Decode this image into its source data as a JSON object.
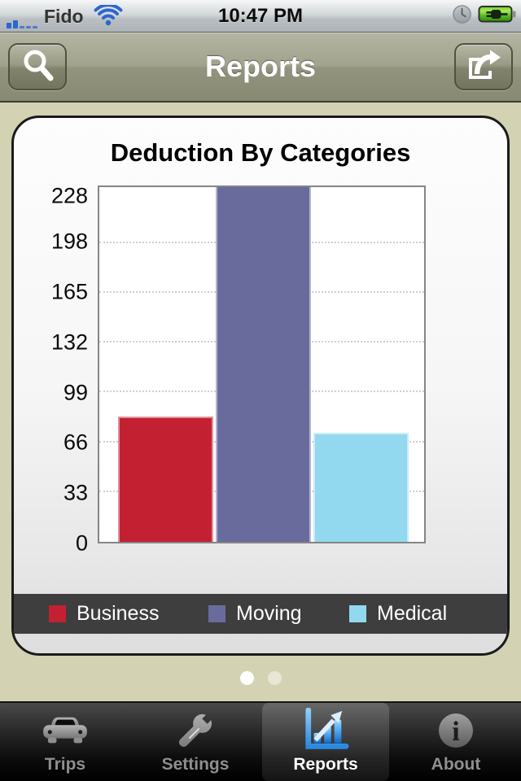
{
  "status_bar": {
    "carrier": "Fido",
    "time": "10:47 PM",
    "signal_bars_filled": 2,
    "signal_bars_total": 5,
    "icons": [
      "cell-signal-icon",
      "wifi-icon",
      "clock-icon",
      "battery-charging-icon"
    ]
  },
  "nav_bar": {
    "title": "Reports",
    "left_button_icon": "search-icon",
    "right_button_icon": "share-icon"
  },
  "chart_data": {
    "type": "bar",
    "title": "Deduction By Categories",
    "categories": [
      "Business",
      "Moving",
      "Medical"
    ],
    "values": [
      83,
      240,
      72
    ],
    "colors": [
      "#c32132",
      "#6a6b9d",
      "#92d8ee"
    ],
    "y_ticks": [
      0,
      33,
      66,
      99,
      132,
      165,
      198,
      228
    ],
    "ylim": [
      0,
      235
    ],
    "xlabel": "",
    "ylabel": "",
    "grid": "horizontal dotted",
    "legend_position": "bottom bar",
    "note": "Moving bar exceeds the y-axis range and is clipped at the plot top"
  },
  "pager": {
    "dot_count": 2,
    "active_index": 0
  },
  "tab_bar": {
    "items": [
      {
        "label": "Trips",
        "icon": "car-icon",
        "active": false
      },
      {
        "label": "Settings",
        "icon": "wrench-icon",
        "active": false
      },
      {
        "label": "Reports",
        "icon": "bar-chart-icon",
        "active": true
      },
      {
        "label": "About",
        "icon": "info-icon",
        "active": false
      }
    ]
  },
  "colors": {
    "background": "#d3d2b3",
    "nav_bar": "#9a9b86",
    "legend_band": "#3e3e3e",
    "accent_blue": "#2d66cf",
    "battery_green": "#5fc224"
  }
}
